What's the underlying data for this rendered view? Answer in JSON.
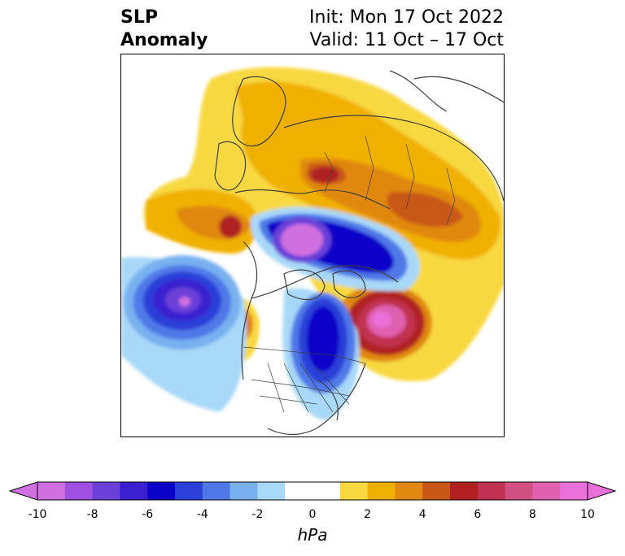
{
  "title": {
    "left_line1": "SLP",
    "left_line2": "Anomaly",
    "right_line1": "Init: Mon 17 Oct 2022",
    "right_line2": "Valid: 11 Oct – 17 Oct"
  },
  "colorbar": {
    "unit": "hPa",
    "min": -10,
    "max": 10,
    "ticks": [
      "-10",
      "-8",
      "-6",
      "-4",
      "-2",
      "0",
      "2",
      "4",
      "6",
      "8",
      "10"
    ],
    "tick_values": [
      -10,
      -8,
      -6,
      -4,
      -2,
      0,
      2,
      4,
      6,
      8,
      10
    ],
    "colors": [
      "#d070e0",
      "#a050e0",
      "#6a40d8",
      "#3a20d0",
      "#0a00c8",
      "#2a40d8",
      "#5078e8",
      "#78b0f0",
      "#a8d8f8",
      "#ffffff",
      "#ffffff",
      "#f8d840",
      "#f0b000",
      "#e08810",
      "#c85818",
      "#b02020",
      "#c03050",
      "#d05080",
      "#e060b0",
      "#e870d8"
    ]
  },
  "map": {
    "projection": "north-polar-stereographic",
    "field": "sea-level-pressure-anomaly",
    "features": [
      {
        "name": "negative-anomaly-alaska-bering",
        "value": -9
      },
      {
        "name": "negative-anomaly-gulf-of-alaska",
        "value": -7
      },
      {
        "name": "negative-anomaly-hudson-bay",
        "value": -7
      },
      {
        "name": "positive-anomaly-north-atlantic",
        "value": 9
      },
      {
        "name": "positive-anomaly-russia",
        "value": 5
      },
      {
        "name": "positive-anomaly-east-siberia",
        "value": 5
      }
    ]
  }
}
